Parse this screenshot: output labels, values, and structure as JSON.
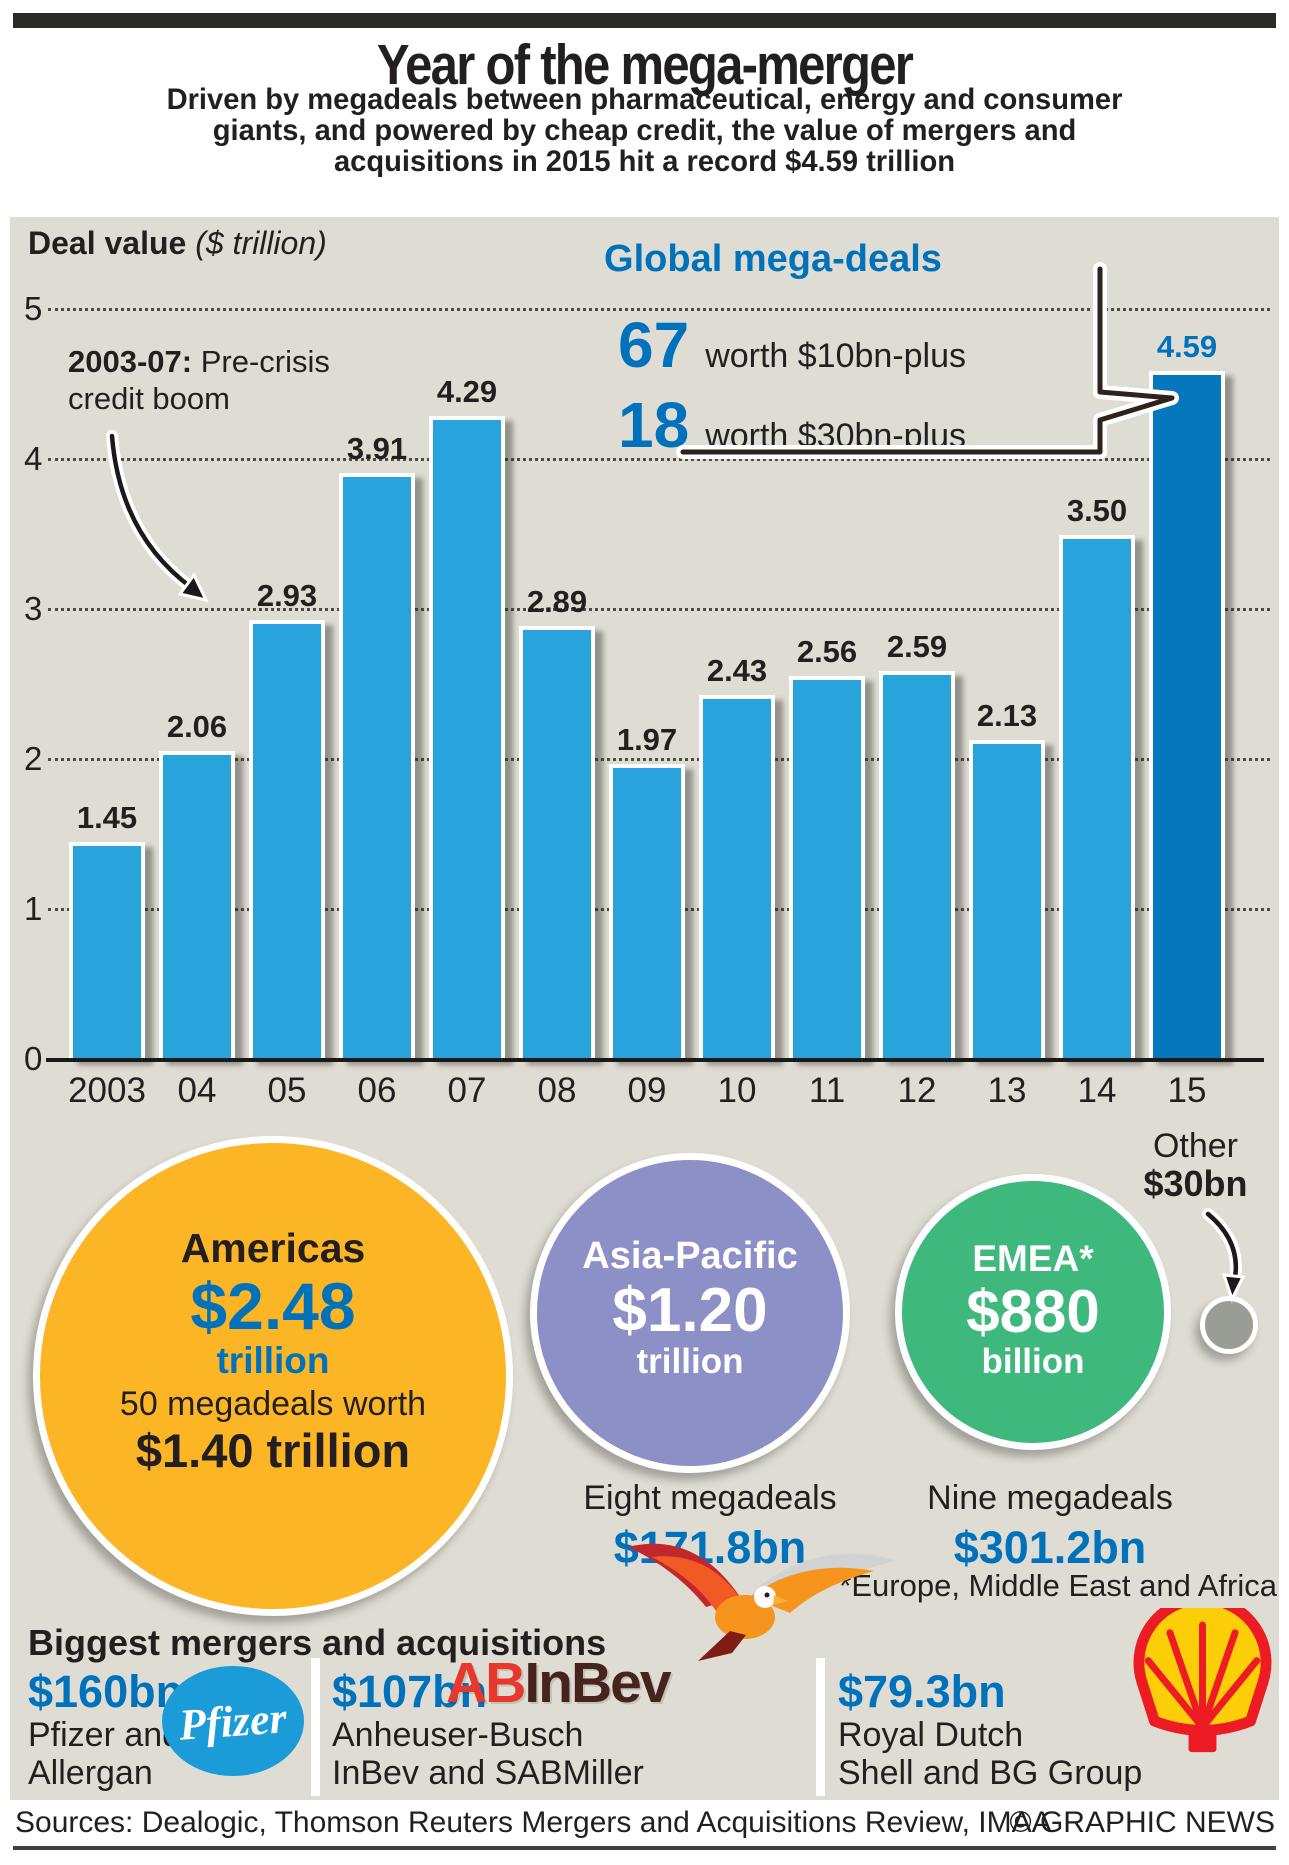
{
  "header": {
    "title": "Year of the mega-merger",
    "subtitle": "Driven by megadeals between pharmaceutical, energy and consumer\ngiants, and powered by cheap credit, the value of mergers and\nacquisitions in 2015 hit a record $4.59 trillion"
  },
  "chart_data": {
    "type": "bar",
    "title": "Deal value",
    "unit_label": "($ trillion)",
    "categories": [
      "2003",
      "04",
      "05",
      "06",
      "07",
      "08",
      "09",
      "10",
      "11",
      "12",
      "13",
      "14",
      "15"
    ],
    "values": [
      1.45,
      2.06,
      2.93,
      3.91,
      4.29,
      2.89,
      1.97,
      2.43,
      2.56,
      2.59,
      2.13,
      3.5,
      4.59
    ],
    "value_labels": [
      "1.45",
      "2.06",
      "2.93",
      "3.91",
      "4.29",
      "2.89",
      "1.97",
      "2.43",
      "2.56",
      "2.59",
      "2.13",
      "3.50",
      "4.59"
    ],
    "ylim": [
      0,
      5
    ],
    "yticks": [
      "5",
      "4",
      "3",
      "2",
      "1",
      "0"
    ],
    "grid": "horizontal-dotted",
    "legend": "none",
    "bar_color": "#29a3dc",
    "highlight_color": "#0677bd",
    "highlight_index": 12,
    "label_color": "#231f20",
    "highlight_label_color": "#0072bc",
    "annotation": {
      "lead": "2003-07:",
      "rest": " Pre-crisis\ncredit boom"
    },
    "callout": {
      "title": "Global mega-deals",
      "stats": [
        {
          "big": "67",
          "text": "worth $10bn-plus"
        },
        {
          "big": "18",
          "text": "worth $30bn-plus"
        }
      ]
    }
  },
  "regions": {
    "americas": {
      "name": "Americas",
      "value": "$2.48",
      "unit": "trillion",
      "note_line1": "50 megadeals worth",
      "note_line2": "$1.40 trillion",
      "color": "#fcb525"
    },
    "asia_pacific": {
      "name": "Asia-Pacific",
      "value": "$1.20",
      "unit": "trillion",
      "megadeals": "Eight megadeals",
      "megadeals_value": "$171.8bn",
      "color": "#8d90c7"
    },
    "emea": {
      "name": "EMEA*",
      "value": "$880",
      "unit": "billion",
      "megadeals": "Nine megadeals",
      "megadeals_value": "$301.2bn",
      "color": "#3eb87c"
    },
    "other": {
      "name": "Other",
      "value": "$30bn",
      "color": "#9a9c96"
    },
    "footnote": "*Europe, Middle East and Africa"
  },
  "deals": {
    "heading": "Biggest mergers and acquisitions",
    "items": [
      {
        "value": "$160bn",
        "line1": "Pfizer and",
        "line2": "Allergan"
      },
      {
        "value": "$107bn",
        "line1": "Anheuser-Busch",
        "line2": "InBev and SABMiller"
      },
      {
        "value": "$79.3bn",
        "line1": "Royal Dutch",
        "line2": "Shell and BG Group"
      }
    ],
    "logos": {
      "pfizer": "Pfizer",
      "ab": "AB",
      "inbev": "InBev"
    }
  },
  "footer": {
    "sources": "Sources: Dealogic, Thomson Reuters Mergers and Acquisitions Review, IMAA",
    "credit": "© GRAPHIC NEWS"
  }
}
